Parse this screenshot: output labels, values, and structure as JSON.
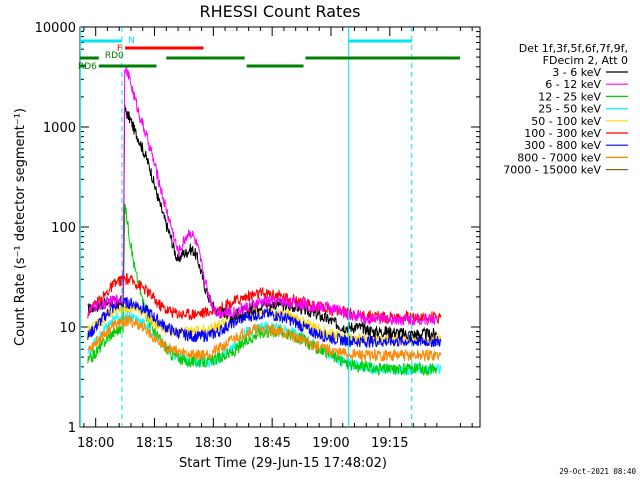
{
  "chart_data": {
    "type": "line",
    "title": "RHESSI Count Rates",
    "xlabel": "Start Time (29-Jun-15 17:48:02)",
    "ylabel": "Count Rate (s⁻¹ detector segment⁻¹)",
    "yscale": "log",
    "ylim": [
      1,
      10000
    ],
    "xlim_minutes": [
      -4,
      98
    ],
    "x_unit": "minutes after 18:00",
    "y_ticks": [
      1,
      10,
      100,
      1000,
      10000
    ],
    "y_tick_labels": [
      "1",
      "10",
      "100",
      "1000",
      "10000"
    ],
    "x_ticks": [
      0,
      15,
      30,
      45,
      60,
      75
    ],
    "x_tick_labels": [
      "18:00",
      "18:15",
      "18:30",
      "18:45",
      "19:00",
      "19:15"
    ],
    "legend_header": [
      "Det 1f,3f,5f,6f,7f,9f,",
      "FDecim 2, Att 0"
    ],
    "series": [
      {
        "name": "3 - 6 keV",
        "color": "#000000",
        "x": [
          -2,
          0,
          2,
          4,
          6,
          7,
          7.4,
          8,
          9,
          10,
          11,
          12,
          13,
          14,
          15,
          16,
          17,
          18,
          19,
          20,
          21,
          22,
          23,
          24,
          25,
          26,
          27,
          28,
          29,
          30,
          31,
          33,
          35,
          37,
          39,
          41,
          43,
          45,
          47,
          49,
          51,
          53,
          55,
          57,
          59,
          61,
          63,
          65,
          67,
          69,
          71,
          73,
          75,
          77,
          79,
          81,
          83,
          85,
          87
        ],
        "values": [
          15,
          16,
          17,
          18,
          18,
          18,
          1500,
          1350,
          1150,
          900,
          760,
          600,
          480,
          370,
          260,
          190,
          140,
          105,
          82,
          60,
          45,
          54,
          55,
          60,
          58,
          48,
          34,
          24,
          19,
          16,
          14,
          14,
          13,
          14,
          15,
          16,
          17,
          17,
          17,
          16,
          16,
          15,
          14,
          13,
          12,
          11,
          10,
          10,
          10,
          9.5,
          9,
          9,
          9,
          8.8,
          8.5,
          8.5,
          8.5,
          8.5,
          8.5
        ]
      },
      {
        "name": "6 - 12 keV",
        "color": "#ff00ff",
        "x": [
          -2,
          0,
          2,
          4,
          6,
          7,
          7.4,
          8,
          9,
          10,
          11,
          12,
          13,
          14,
          15,
          16,
          17,
          18,
          19,
          20,
          21,
          22,
          23,
          24,
          25,
          26,
          27,
          28,
          29,
          30,
          31,
          33,
          35,
          37,
          39,
          41,
          43,
          45,
          47,
          49,
          51,
          53,
          55,
          57,
          59,
          61,
          63,
          65,
          67,
          69,
          71,
          73,
          75,
          77,
          79,
          81,
          83,
          85,
          87
        ],
        "values": [
          14,
          16,
          17,
          18,
          19,
          19,
          4200,
          3600,
          2700,
          1900,
          1400,
          1050,
          800,
          600,
          420,
          300,
          210,
          150,
          110,
          80,
          55,
          65,
          80,
          90,
          80,
          62,
          42,
          28,
          20,
          16,
          14,
          14,
          14,
          15,
          16,
          17,
          18,
          18,
          18,
          18,
          17,
          17,
          16,
          16,
          16,
          15,
          14,
          13,
          13,
          12,
          12,
          12,
          12,
          12,
          12,
          12,
          12,
          12,
          12
        ]
      },
      {
        "name": "12 - 25 keV",
        "color": "#00cc00",
        "x": [
          -2,
          0,
          2,
          4,
          6,
          7,
          7.4,
          8,
          9,
          10,
          11,
          12,
          13,
          15,
          17,
          19,
          21,
          23,
          25,
          27,
          29,
          31,
          33,
          35,
          37,
          39,
          41,
          43,
          45,
          47,
          49,
          51,
          53,
          55,
          57,
          59,
          61,
          63,
          65,
          67,
          69,
          71,
          73,
          75,
          77,
          79,
          81,
          83,
          85,
          87
        ],
        "values": [
          4.5,
          5.5,
          7,
          8.5,
          9.5,
          9.5,
          170,
          120,
          65,
          38,
          26,
          18,
          13,
          9,
          7,
          5.5,
          5,
          4.5,
          4.5,
          4.5,
          4.5,
          4.8,
          5.2,
          5.5,
          6.5,
          7.5,
          8.5,
          9,
          9,
          9,
          8.5,
          8,
          7.5,
          6.5,
          6,
          5.5,
          5,
          4.5,
          4.2,
          4,
          4,
          3.8,
          3.8,
          3.8,
          3.8,
          3.8,
          3.8,
          3.8,
          3.8,
          3.8
        ]
      },
      {
        "name": "25 - 50 keV",
        "color": "#00ffff",
        "x": [
          -2,
          0,
          2,
          4,
          6,
          8,
          10,
          12,
          14,
          16,
          18,
          20,
          22,
          24,
          26,
          28,
          30,
          32,
          34,
          36,
          38,
          40,
          42,
          44,
          46,
          48,
          50,
          52,
          54,
          56,
          58,
          60,
          62,
          64,
          66,
          68,
          70,
          72,
          74,
          76,
          78,
          80,
          82,
          84,
          86,
          88
        ],
        "values": [
          5.5,
          7,
          9,
          11,
          12.5,
          13,
          12.5,
          11,
          9,
          7.5,
          6.2,
          5.2,
          4.8,
          4.6,
          4.5,
          4.5,
          4.6,
          5,
          5.8,
          7,
          8.5,
          9.5,
          10,
          10,
          9.8,
          9.3,
          8.7,
          8,
          7.2,
          6.5,
          5.8,
          5.2,
          4.7,
          4.4,
          4.2,
          4,
          3.9,
          3.8,
          3.8,
          3.8,
          3.8,
          3.8,
          3.8,
          3.8,
          3.8,
          3.8
        ]
      },
      {
        "name": "50 - 100 keV",
        "color": "#ffd700",
        "x": [
          -2,
          0,
          2,
          4,
          6,
          8,
          10,
          12,
          14,
          16,
          18,
          20,
          22,
          24,
          26,
          28,
          30,
          32,
          34,
          36,
          38,
          40,
          42,
          44,
          46,
          48,
          50,
          52,
          54,
          56,
          58,
          60,
          62,
          64,
          66,
          68,
          70,
          72,
          74,
          76,
          78,
          80,
          82,
          84,
          86,
          88
        ],
        "values": [
          9,
          10.5,
          12,
          14,
          15.5,
          16,
          15.5,
          14,
          12,
          10.5,
          9.5,
          9,
          8.8,
          8.8,
          9,
          9.3,
          9.8,
          10.5,
          11.5,
          12.5,
          13.5,
          14,
          14.5,
          14.5,
          14,
          13.5,
          12.5,
          11.5,
          10.5,
          9.5,
          9,
          8.5,
          8,
          7.8,
          7.5,
          7.5,
          7.5,
          7.5,
          7.5,
          7.5,
          7.5,
          7.5,
          7.5,
          7.5,
          7.5,
          7.5
        ]
      },
      {
        "name": "100 - 300 keV",
        "color": "#ff0000",
        "x": [
          -2,
          0,
          2,
          4,
          6,
          8,
          10,
          12,
          14,
          16,
          18,
          20,
          22,
          24,
          26,
          28,
          30,
          32,
          34,
          36,
          38,
          40,
          42,
          44,
          46,
          48,
          50,
          52,
          54,
          56,
          58,
          60,
          62,
          64,
          66,
          68,
          70,
          72,
          74,
          76,
          78,
          80,
          82,
          84,
          86,
          88
        ],
        "values": [
          14,
          17,
          20,
          25,
          29,
          30,
          28,
          25,
          21,
          17,
          15,
          14,
          13.5,
          13.5,
          13.8,
          14,
          14.5,
          15.5,
          17,
          18.5,
          20,
          21,
          21.5,
          21.5,
          21,
          20,
          19,
          18,
          17,
          16,
          15.5,
          15,
          14.5,
          14,
          13.5,
          13,
          13,
          12.8,
          12.5,
          12.5,
          12.5,
          12.5,
          12.5,
          12.5,
          12.5,
          12.5
        ]
      },
      {
        "name": "300 - 800 keV",
        "color": "#0000ff",
        "x": [
          -2,
          0,
          2,
          4,
          6,
          8,
          10,
          12,
          14,
          16,
          18,
          20,
          22,
          24,
          26,
          28,
          30,
          32,
          34,
          36,
          38,
          40,
          42,
          44,
          46,
          48,
          50,
          52,
          54,
          56,
          58,
          60,
          62,
          64,
          66,
          68,
          70,
          72,
          74,
          76,
          78,
          80,
          82,
          84,
          86,
          88
        ],
        "values": [
          8,
          10,
          12.5,
          15,
          17,
          17.5,
          17,
          15.5,
          13.5,
          11.5,
          10,
          9,
          8.5,
          8.2,
          8,
          8.2,
          8.5,
          9.3,
          10.5,
          11.5,
          12.5,
          13,
          13.5,
          13.5,
          13,
          12.5,
          11.5,
          10.5,
          9.5,
          8.7,
          8.2,
          7.8,
          7.5,
          7.3,
          7.2,
          7.2,
          7.2,
          7.2,
          7.2,
          7.2,
          7.2,
          7.2,
          7.2,
          7.2,
          7.2,
          7.2
        ]
      },
      {
        "name": "800 - 7000 keV",
        "color": "#ff8800",
        "x": [
          -2,
          0,
          2,
          4,
          6,
          8,
          10,
          12,
          14,
          16,
          18,
          20,
          22,
          24,
          26,
          28,
          30,
          32,
          34,
          36,
          38,
          40,
          42,
          44,
          46,
          48,
          50,
          52,
          54,
          56,
          58,
          60,
          62,
          64,
          66,
          68,
          70,
          72,
          74,
          76,
          78,
          80,
          82,
          84,
          86,
          88
        ],
        "values": [
          6,
          7,
          8.5,
          10,
          11,
          11.5,
          11,
          10,
          8.5,
          7.2,
          6.3,
          5.8,
          5.5,
          5.4,
          5.3,
          5.4,
          5.6,
          6.2,
          7,
          8,
          8.8,
          9.3,
          9.5,
          9.5,
          9.3,
          8.8,
          8.2,
          7.6,
          7,
          6.5,
          6.1,
          5.8,
          5.5,
          5.4,
          5.3,
          5.2,
          5.2,
          5.2,
          5.2,
          5.2,
          5.2,
          5.2,
          5.2,
          5.2,
          5.2,
          5.2
        ]
      },
      {
        "name": "7000 - 15000 keV",
        "color": "#8b6508",
        "x": [],
        "values": []
      }
    ],
    "annotations": {
      "cyan_vlines_solid_minutes": [
        -3.9,
        64.5
      ],
      "cyan_vlines_dashed_minutes": [
        6.7,
        80.6
      ],
      "cyan_bars": [
        {
          "label": "N",
          "from": -3.9,
          "to": 6.7
        },
        {
          "label": "",
          "from": 64.5,
          "to": 80.6
        }
      ],
      "red_bars": [
        {
          "label": "F",
          "from": 7.5,
          "to": 27.5
        }
      ],
      "green_bars_upper": [
        {
          "label": "RD0",
          "from": -4,
          "to": 0.8
        },
        {
          "label": "",
          "from": 18,
          "to": 38
        },
        {
          "label": "",
          "from": 53.5,
          "to": 98
        }
      ],
      "green_bars_lower": [
        {
          "label": "RD6",
          "from": -4,
          "to": -2.5
        },
        {
          "label": "",
          "from": 0.8,
          "to": 15.5
        },
        {
          "label": "",
          "from": 38.5,
          "to": 53
        }
      ]
    },
    "footer_date": "29-Oct-2021 08:40"
  }
}
